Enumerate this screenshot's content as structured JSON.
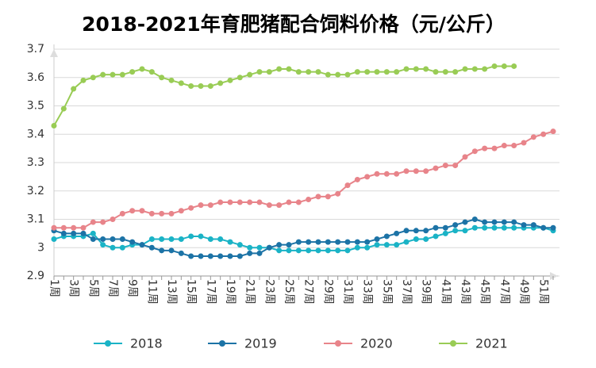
{
  "chart_data": {
    "type": "line",
    "title": "2018-2021年育肥猪配合饲料价格（元/公斤）",
    "categories": [
      "1周",
      null,
      "3周",
      null,
      "5周",
      null,
      "7周",
      null,
      "9周",
      null,
      "11周",
      null,
      "13周",
      null,
      "15周",
      null,
      "17周",
      null,
      "19周",
      null,
      "21周",
      null,
      "23周",
      null,
      "25周",
      null,
      "27周",
      null,
      "29周",
      null,
      "31周",
      null,
      "33周",
      null,
      "35周",
      null,
      "37周",
      null,
      "39周",
      null,
      "41周",
      null,
      "43周",
      null,
      "45周",
      null,
      "47周",
      null,
      "49周",
      null,
      "51周",
      null
    ],
    "series": [
      {
        "name": "2018",
        "color": "#1ab3c6",
        "values": [
          3.03,
          3.04,
          3.04,
          3.04,
          3.05,
          3.01,
          3.0,
          3.0,
          3.01,
          3.01,
          3.03,
          3.03,
          3.03,
          3.03,
          3.04,
          3.04,
          3.03,
          3.03,
          3.02,
          3.01,
          3.0,
          3.0,
          3.0,
          2.99,
          2.99,
          2.99,
          2.99,
          2.99,
          2.99,
          2.99,
          2.99,
          3.0,
          3.0,
          3.01,
          3.01,
          3.01,
          3.02,
          3.03,
          3.03,
          3.04,
          3.05,
          3.06,
          3.06,
          3.07,
          3.07,
          3.07,
          3.07,
          3.07,
          3.07,
          3.07,
          3.07,
          3.06
        ]
      },
      {
        "name": "2019",
        "color": "#1c73a6",
        "values": [
          3.06,
          3.05,
          3.05,
          3.05,
          3.03,
          3.03,
          3.03,
          3.03,
          3.02,
          3.01,
          3.0,
          2.99,
          2.99,
          2.98,
          2.97,
          2.97,
          2.97,
          2.97,
          2.97,
          2.97,
          2.98,
          2.98,
          3.0,
          3.01,
          3.01,
          3.02,
          3.02,
          3.02,
          3.02,
          3.02,
          3.02,
          3.02,
          3.02,
          3.03,
          3.04,
          3.05,
          3.06,
          3.06,
          3.06,
          3.07,
          3.07,
          3.08,
          3.09,
          3.1,
          3.09,
          3.09,
          3.09,
          3.09,
          3.08,
          3.08,
          3.07,
          3.07
        ]
      },
      {
        "name": "2020",
        "color": "#e8848a",
        "values": [
          3.07,
          3.07,
          3.07,
          3.07,
          3.09,
          3.09,
          3.1,
          3.12,
          3.13,
          3.13,
          3.12,
          3.12,
          3.12,
          3.13,
          3.14,
          3.15,
          3.15,
          3.16,
          3.16,
          3.16,
          3.16,
          3.16,
          3.15,
          3.15,
          3.16,
          3.16,
          3.17,
          3.18,
          3.18,
          3.19,
          3.22,
          3.24,
          3.25,
          3.26,
          3.26,
          3.26,
          3.27,
          3.27,
          3.27,
          3.28,
          3.29,
          3.29,
          3.32,
          3.34,
          3.35,
          3.35,
          3.36,
          3.36,
          3.37,
          3.39,
          3.4,
          3.41
        ]
      },
      {
        "name": "2021",
        "color": "#99cc55",
        "values": [
          3.43,
          3.49,
          3.56,
          3.59,
          3.6,
          3.61,
          3.61,
          3.61,
          3.62,
          3.63,
          3.62,
          3.6,
          3.59,
          3.58,
          3.57,
          3.57,
          3.57,
          3.58,
          3.59,
          3.6,
          3.61,
          3.62,
          3.62,
          3.63,
          3.63,
          3.62,
          3.62,
          3.62,
          3.61,
          3.61,
          3.61,
          3.62,
          3.62,
          3.62,
          3.62,
          3.62,
          3.63,
          3.63,
          3.63,
          3.62,
          3.62,
          3.62,
          3.63,
          3.63,
          3.63,
          3.64,
          3.64,
          3.64,
          null,
          null,
          null,
          null
        ]
      }
    ],
    "ylim": [
      2.9,
      3.7
    ],
    "yticks": [
      2.9,
      3,
      3.1,
      3.2,
      3.3,
      3.4,
      3.5,
      3.6,
      3.7
    ],
    "grid": true,
    "legend": "bottom"
  }
}
